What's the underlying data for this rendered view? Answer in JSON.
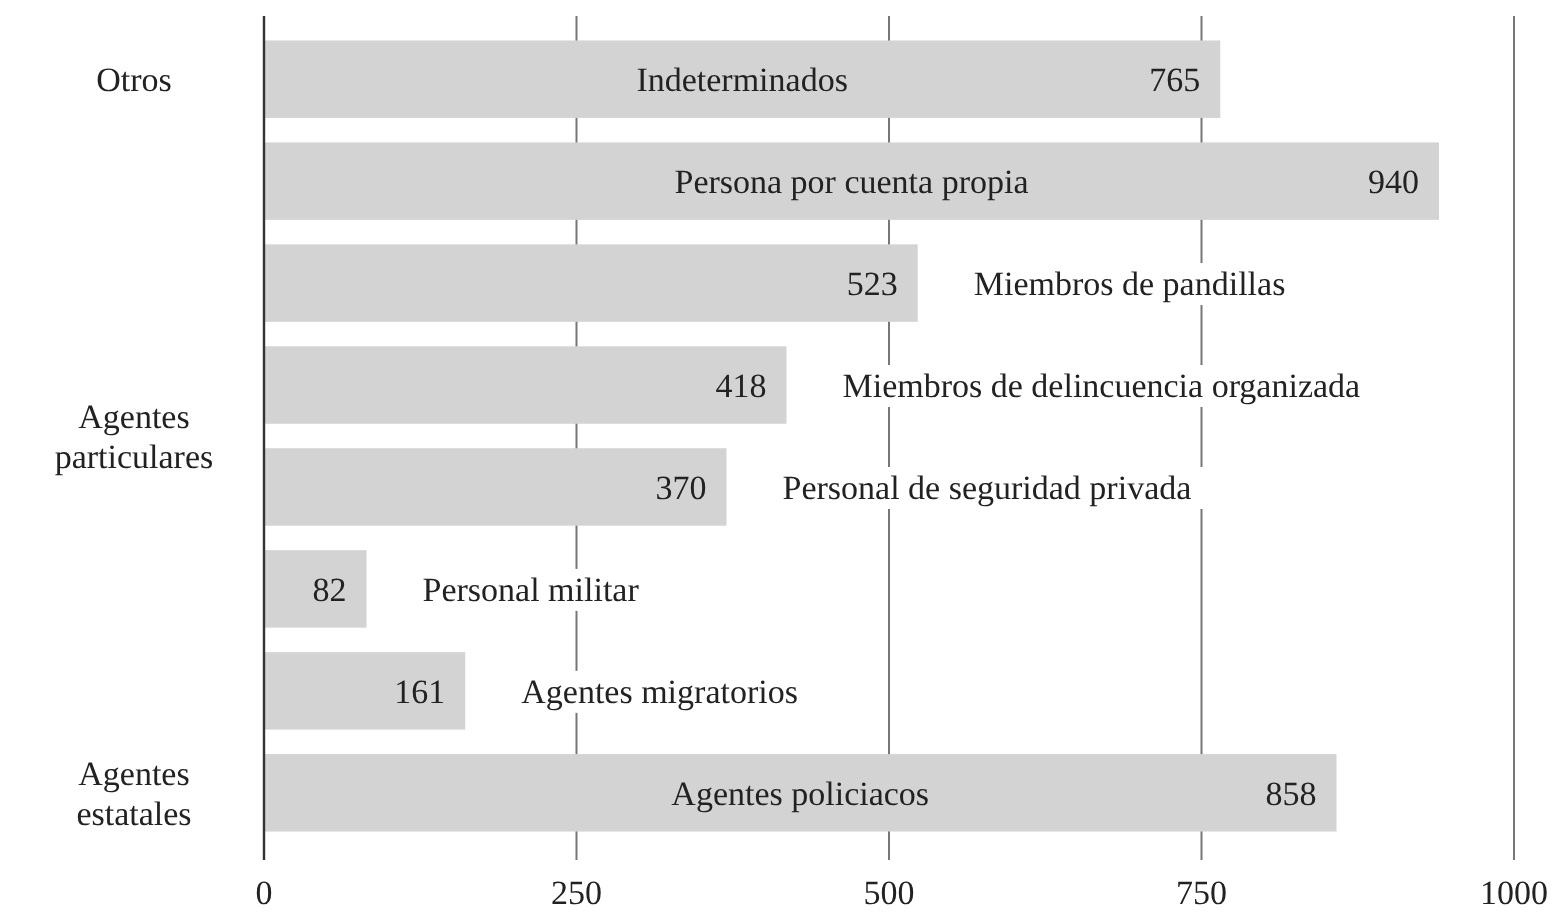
{
  "chart_data": {
    "type": "bar",
    "orientation": "horizontal",
    "categories": [
      "Indeterminados",
      "Persona por cuenta propia",
      "Miembros de pandillas",
      "Miembros de delincuencia organizada",
      "Personal de seguridad privada",
      "Personal militar",
      "Agentes migratorios",
      "Agentes policiacos"
    ],
    "values": [
      765,
      940,
      523,
      418,
      370,
      82,
      161,
      858
    ],
    "color": "#d3d3d3",
    "xlim": [
      0,
      1000
    ],
    "xticks": [
      0,
      250,
      500,
      750,
      1000
    ],
    "grid": "x",
    "data_labels": true,
    "annotations": [
      "Otros",
      "Agentes particulares",
      "Agentes estatales"
    ]
  }
}
